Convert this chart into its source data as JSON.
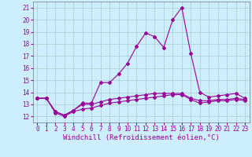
{
  "xlabel": "Windchill (Refroidissement éolien,°C)",
  "background_color": "#cceeff",
  "line_color": "#990099",
  "xlim": [
    -0.5,
    23.5
  ],
  "ylim": [
    11.5,
    21.5
  ],
  "x_ticks": [
    0,
    1,
    2,
    3,
    4,
    5,
    6,
    7,
    8,
    9,
    10,
    11,
    12,
    13,
    14,
    15,
    16,
    17,
    18,
    19,
    20,
    21,
    22,
    23
  ],
  "y_ticks": [
    12,
    13,
    14,
    15,
    16,
    17,
    18,
    19,
    20,
    21
  ],
  "line1_x": [
    0,
    1,
    2,
    3,
    4,
    5,
    6,
    7,
    8,
    9,
    10,
    11,
    12,
    13,
    14,
    15,
    16,
    17,
    18,
    19,
    20,
    21,
    22,
    23
  ],
  "line1_y": [
    13.5,
    13.5,
    12.4,
    12.1,
    12.5,
    13.1,
    13.1,
    14.8,
    14.8,
    15.5,
    16.4,
    17.8,
    18.9,
    18.6,
    17.7,
    20.0,
    21.0,
    17.2,
    14.0,
    13.6,
    13.7,
    13.8,
    13.9,
    13.5
  ],
  "line2_x": [
    0,
    1,
    2,
    3,
    4,
    5,
    6,
    7,
    8,
    9,
    10,
    11,
    12,
    13,
    14,
    15,
    16,
    17,
    18,
    19,
    20,
    21,
    22,
    23
  ],
  "line2_y": [
    13.5,
    13.5,
    12.4,
    12.1,
    12.5,
    13.0,
    13.0,
    13.2,
    13.4,
    13.5,
    13.6,
    13.7,
    13.8,
    13.9,
    13.9,
    13.9,
    13.9,
    13.5,
    13.3,
    13.3,
    13.4,
    13.4,
    13.5,
    13.4
  ],
  "line3_x": [
    0,
    1,
    2,
    3,
    4,
    5,
    6,
    7,
    8,
    9,
    10,
    11,
    12,
    13,
    14,
    15,
    16,
    17,
    18,
    19,
    20,
    21,
    22,
    23
  ],
  "line3_y": [
    13.5,
    13.5,
    12.3,
    12.0,
    12.4,
    12.6,
    12.7,
    12.9,
    13.1,
    13.2,
    13.3,
    13.4,
    13.5,
    13.6,
    13.7,
    13.8,
    13.8,
    13.4,
    13.1,
    13.2,
    13.3,
    13.3,
    13.4,
    13.3
  ],
  "grid_color": "#aacccc",
  "tick_fontsize": 5.5,
  "label_fontsize": 6.5
}
